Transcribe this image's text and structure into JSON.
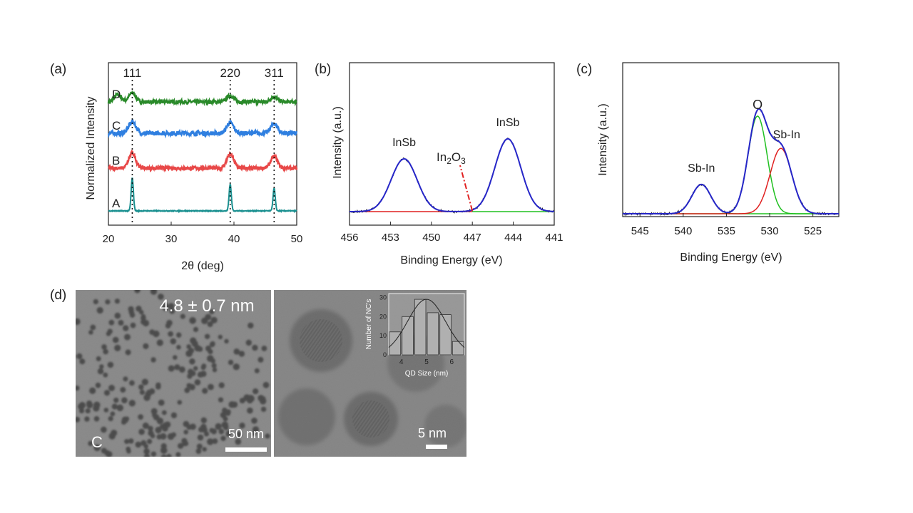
{
  "chart_data": [
    {
      "panel": "(a)",
      "type": "line",
      "xlabel": "2θ (deg)",
      "ylabel": "Normalized Intensity",
      "xlim": [
        20,
        50
      ],
      "xticks": [
        20,
        30,
        40,
        50
      ],
      "peak_labels": [
        {
          "text": "111",
          "x": 23.8
        },
        {
          "text": "220",
          "x": 39.4
        },
        {
          "text": "311",
          "x": 46.4
        }
      ],
      "series": [
        {
          "name": "D",
          "color": "#2a8a2a",
          "offset": 3,
          "peaks": [
            [
              21.5,
              0.8
            ],
            [
              23.8,
              1.0
            ],
            [
              39.4,
              0.7
            ],
            [
              46.4,
              0.55
            ]
          ]
        },
        {
          "name": "C",
          "color": "#2f7fe0",
          "offset": 2,
          "peaks": [
            [
              23.8,
              1.1
            ],
            [
              39.4,
              1.0
            ],
            [
              46.4,
              0.9
            ]
          ]
        },
        {
          "name": "B",
          "color": "#e84848",
          "offset": 1,
          "peaks": [
            [
              23.8,
              1.3
            ],
            [
              39.4,
              1.2
            ],
            [
              46.4,
              1.0
            ]
          ]
        },
        {
          "name": "A",
          "color": "#1a9090",
          "offset": 0,
          "peaks": [
            [
              23.8,
              1.6
            ],
            [
              39.4,
              1.3
            ],
            [
              46.4,
              1.1
            ]
          ]
        }
      ]
    },
    {
      "panel": "(b)",
      "type": "line",
      "xlabel": "Binding Energy (eV)",
      "ylabel": "Intensity (a.u.)",
      "xlim": [
        456,
        441
      ],
      "xticks": [
        456,
        453,
        450,
        447,
        444,
        441
      ],
      "peaks": [
        {
          "label": "InSb",
          "center": 452.0,
          "height": 1.0
        },
        {
          "label": "InSb",
          "center": 444.4,
          "height": 1.38
        }
      ],
      "marker": {
        "label_main": "In",
        "sub1": "2",
        "mid": "O",
        "sub2": "3",
        "x": 447.0
      }
    },
    {
      "panel": "(c)",
      "type": "line",
      "xlabel": "Binding Energy (eV)",
      "ylabel": "Intensity (a.u.)",
      "xlim": [
        547,
        522
      ],
      "xticks": [
        545,
        540,
        535,
        530,
        525
      ],
      "peaks": [
        {
          "label": "Sb-In",
          "center": 537.9,
          "height": 0.3
        },
        {
          "label": "O",
          "center": 531.4,
          "height": 1.0
        },
        {
          "label": "Sb-In",
          "center": 528.7,
          "height": 0.67
        }
      ]
    }
  ],
  "panels": {
    "a": "(a)",
    "b": "(b)",
    "c": "(c)",
    "d": "(d)"
  },
  "tem": {
    "size_label": "4.8 ± 0.7 nm",
    "sample_label": "C",
    "scale_left": "50 nm",
    "scale_right": "5 nm",
    "inset": {
      "ylabel": "Number of NC's",
      "xlabel": "QD Size (nm)",
      "yticks": [
        0,
        10,
        20,
        30
      ],
      "xticks": [
        4,
        5,
        6
      ],
      "bins": [
        3.75,
        4.25,
        4.75,
        5.25,
        5.75,
        6.25
      ],
      "counts": [
        12,
        20,
        29,
        22,
        21,
        7
      ]
    }
  },
  "colors": {
    "fit": "#2626c8",
    "data": "#222222",
    "baseline_red": "#e02020",
    "baseline_green": "#20c020"
  }
}
